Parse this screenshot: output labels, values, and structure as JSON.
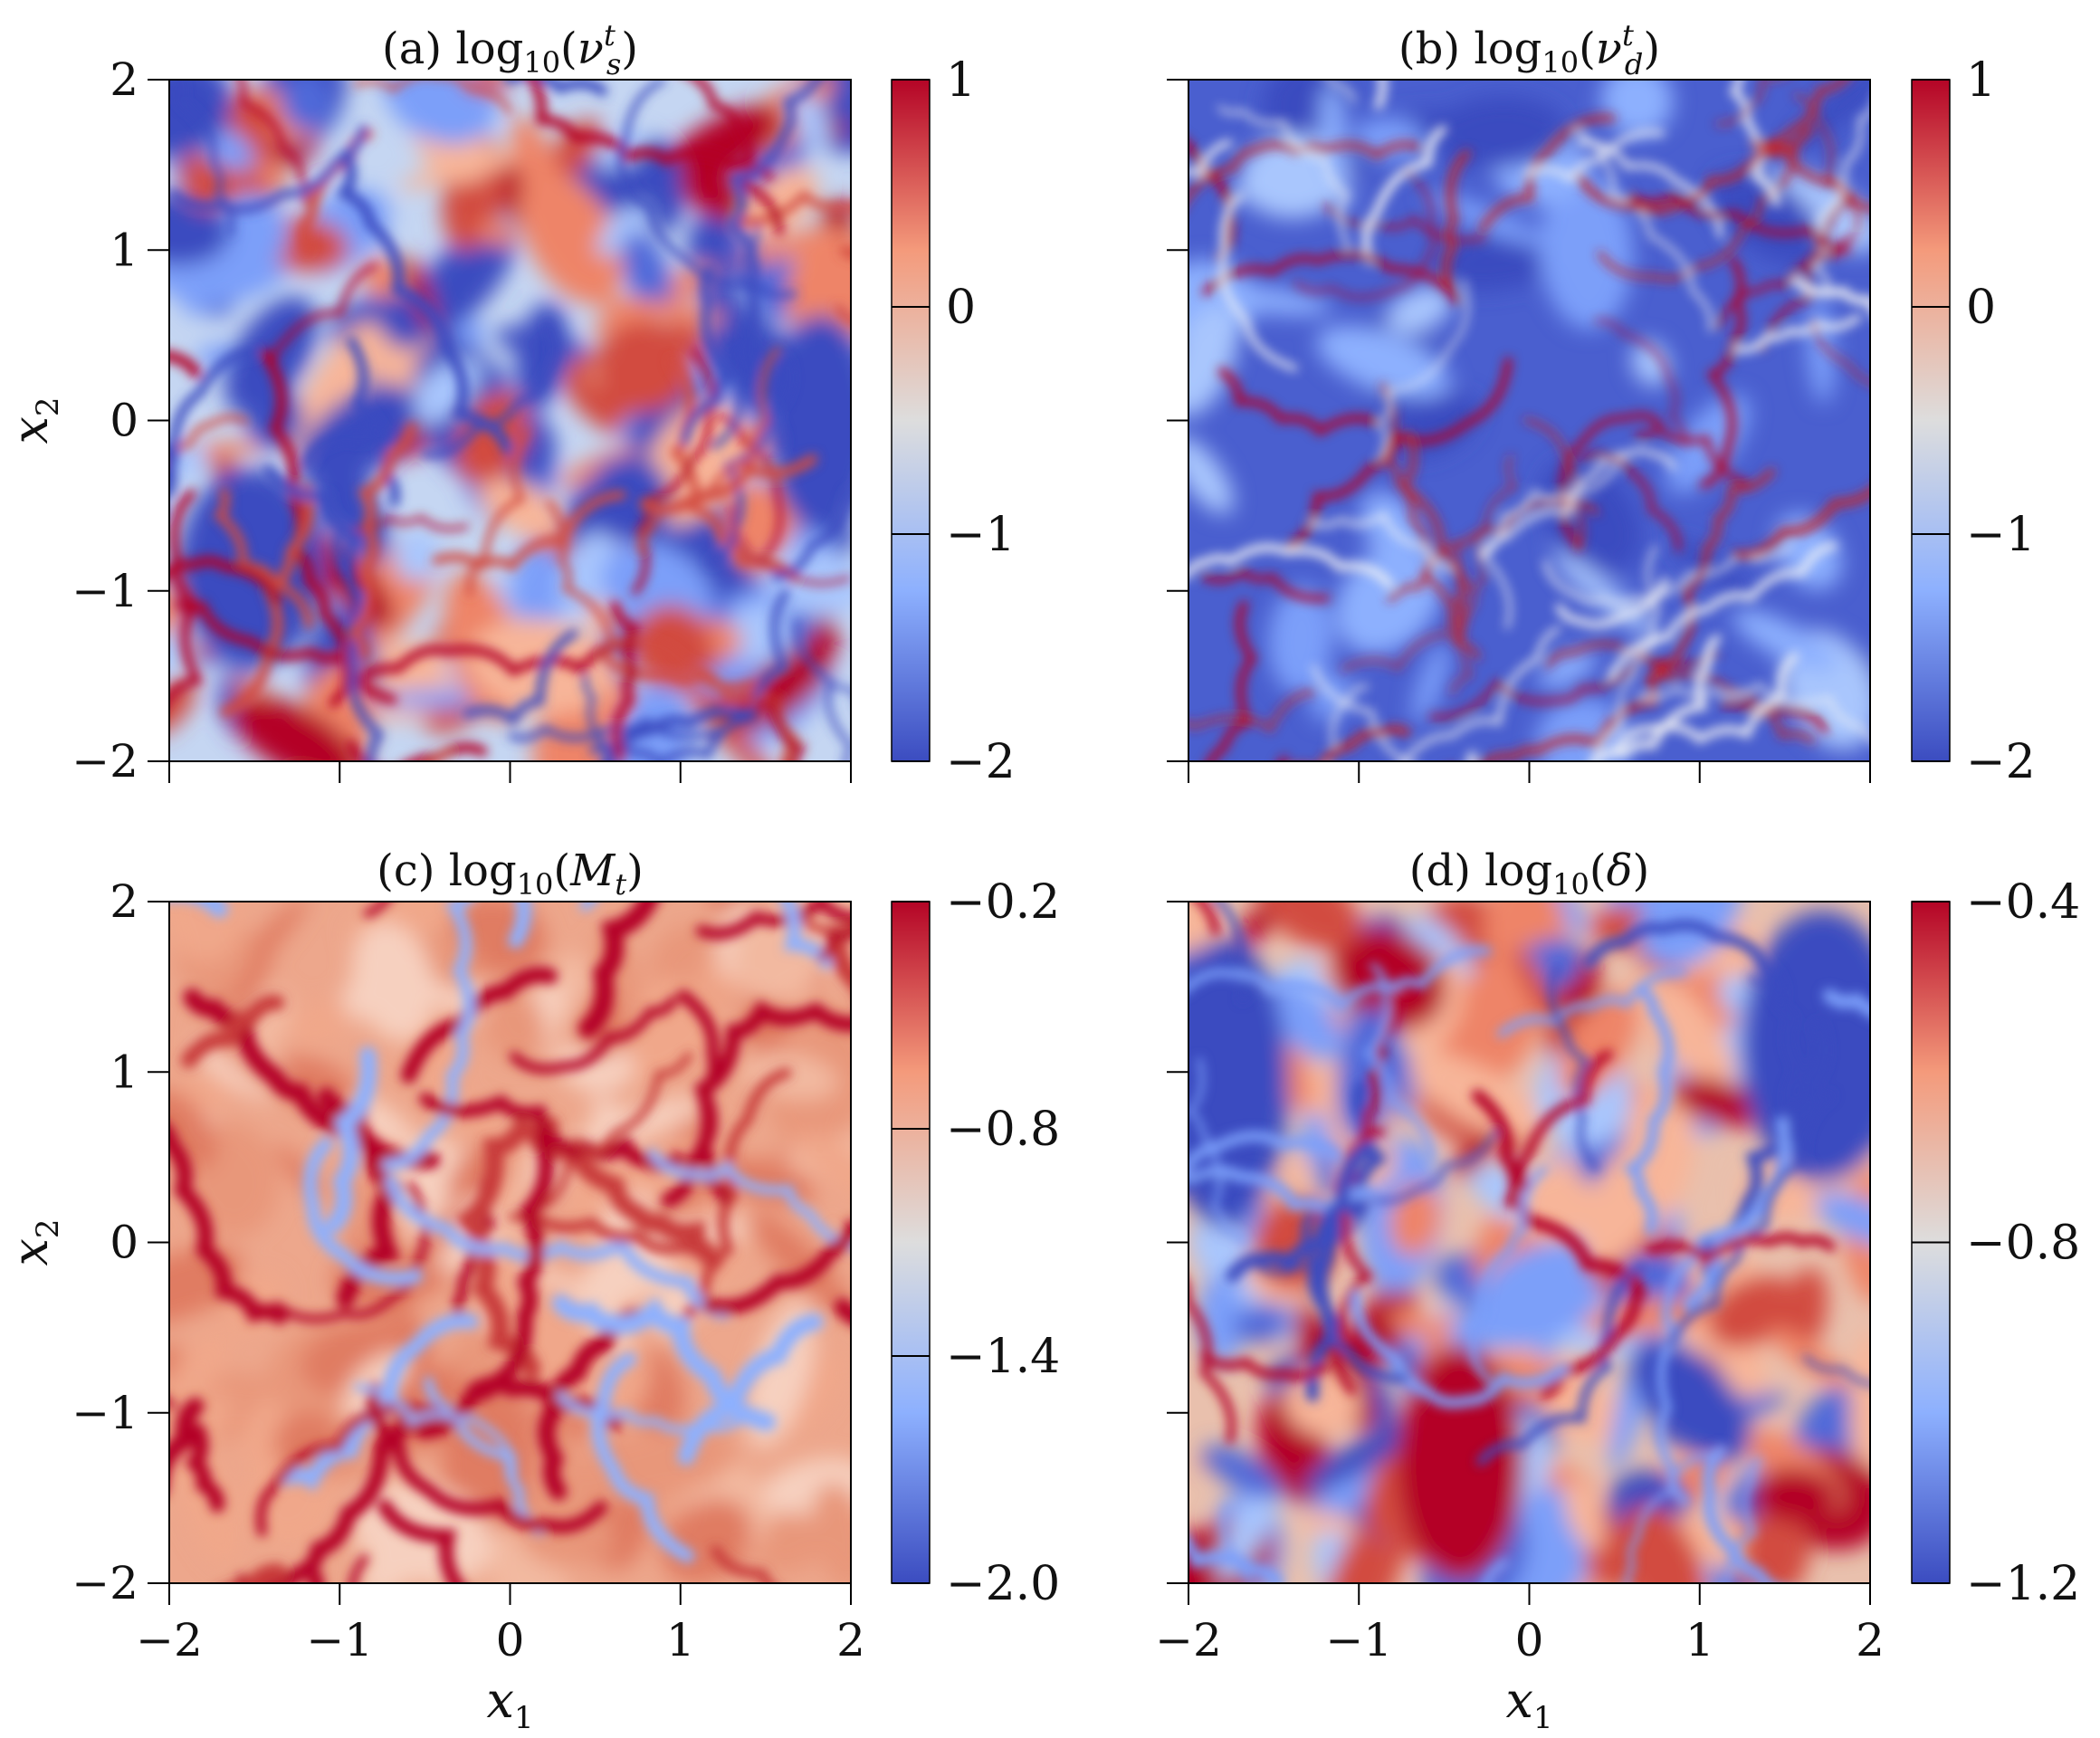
{
  "chart_data": [
    {
      "type": "heatmap",
      "panel": "(a)",
      "title": "log10(ν_s^t)",
      "title_tex": {
        "base": "log",
        "base_sub": "10",
        "var": "ν",
        "sub": "s",
        "sup": "t"
      },
      "xlim": [
        -2,
        2
      ],
      "ylim": [
        -2,
        2
      ],
      "xticks": [
        -2,
        -1,
        0,
        1,
        2
      ],
      "yticks": [
        "2",
        "1",
        "0",
        "−1",
        "−2"
      ],
      "xticklabels_shown": false,
      "ylabel": "x2",
      "colorbar": {
        "range": [
          -2,
          1
        ],
        "ticks": [
          "1",
          "0",
          "−1",
          "−2"
        ]
      },
      "colormap": "coolwarm",
      "pattern": "mixed turbulent field: patches of red (high) and blue (low) intermingled"
    },
    {
      "type": "heatmap",
      "panel": "(b)",
      "title": "log10(ν_d^t)",
      "title_tex": {
        "base": "log",
        "base_sub": "10",
        "var": "ν",
        "sub": "d",
        "sup": "t"
      },
      "xlim": [
        -2,
        2
      ],
      "ylim": [
        -2,
        2
      ],
      "xticks": [
        -2,
        -1,
        0,
        1,
        2
      ],
      "yticks": [
        2,
        1,
        0,
        -1,
        -2
      ],
      "xticklabels_shown": false,
      "yticklabels_shown": false,
      "colorbar": {
        "range": [
          -2,
          1
        ],
        "ticks": [
          "1",
          "0",
          "−1",
          "−2"
        ]
      },
      "colormap": "coolwarm",
      "pattern": "mostly blue background with thin red filaments (shocklets)"
    },
    {
      "type": "heatmap",
      "panel": "(c)",
      "title": "log10(M_t)",
      "title_tex": {
        "base": "log",
        "base_sub": "10",
        "var": "M",
        "sub": "t",
        "sup": ""
      },
      "xlim": [
        -2,
        2
      ],
      "ylim": [
        -2,
        2
      ],
      "xticks": [
        "−2",
        "−1",
        "0",
        "1",
        "2"
      ],
      "yticks": [
        "2",
        "1",
        "0",
        "−1",
        "−2"
      ],
      "xlabel": "x1",
      "ylabel": "x2",
      "colorbar": {
        "range": [
          -2.0,
          -0.2
        ],
        "ticks": [
          "−0.2",
          "−0.8",
          "−1.4",
          "−2.0"
        ]
      },
      "colormap": "coolwarm",
      "pattern": "mostly light red with dark red streaks and a few blue spots"
    },
    {
      "type": "heatmap",
      "panel": "(d)",
      "title": "log10(δ)",
      "title_tex": {
        "base": "log",
        "base_sub": "10",
        "var": "δ",
        "sub": "",
        "sup": ""
      },
      "xlim": [
        -2,
        2
      ],
      "ylim": [
        -2,
        2
      ],
      "xticks": [
        "−2",
        "−1",
        "0",
        "1",
        "2"
      ],
      "yticks": [
        2,
        1,
        0,
        -1,
        -2
      ],
      "yticklabels_shown": false,
      "xlabel": "x1",
      "colorbar": {
        "range": [
          -1.2,
          -0.4
        ],
        "ticks": [
          "−0.4",
          "−0.8",
          "−1.2"
        ]
      },
      "colormap": "coolwarm",
      "pattern": "mixed field with large blue regions at top-left and top-right, red blobs at bottom"
    }
  ]
}
